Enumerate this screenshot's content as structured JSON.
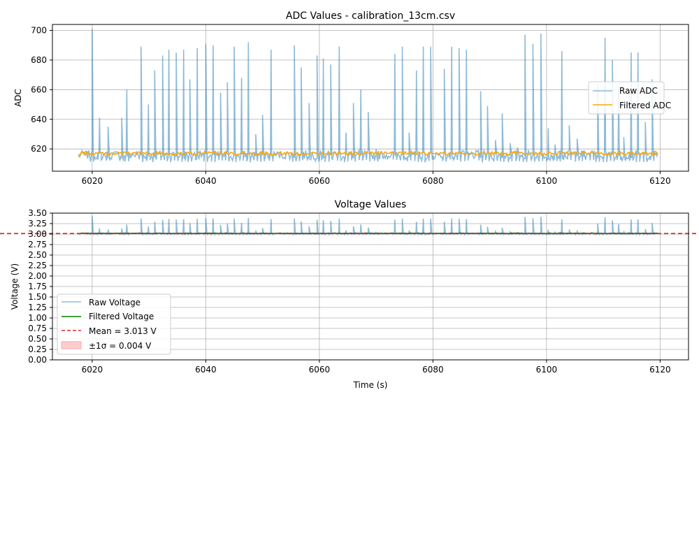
{
  "chart_data": [
    {
      "type": "line",
      "title": "ADC Values - calibration_13cm.csv",
      "xlabel": "",
      "ylabel": "ADC",
      "xlim": [
        6013,
        6125
      ],
      "ylim": [
        605,
        704
      ],
      "xticks": [
        6020,
        6040,
        6060,
        6080,
        6100,
        6120
      ],
      "yticks": [
        620,
        640,
        660,
        680,
        700
      ],
      "grid": true,
      "legend_position": "center-right",
      "series": [
        {
          "name": "Raw ADC",
          "color": "#1f77b4",
          "opacity": 0.5,
          "baseline": 616,
          "x_start": 6017.6,
          "x_end": 6119.6,
          "spikes": [
            [
              6020.0,
              701
            ],
            [
              6021.3,
              641
            ],
            [
              6022.8,
              635
            ],
            [
              6025.2,
              641
            ],
            [
              6026.1,
              660
            ],
            [
              6028.6,
              689
            ],
            [
              6029.9,
              650
            ],
            [
              6031.0,
              673
            ],
            [
              6032.4,
              683
            ],
            [
              6033.5,
              687
            ],
            [
              6034.8,
              685
            ],
            [
              6036.1,
              687
            ],
            [
              6037.2,
              667
            ],
            [
              6038.5,
              688
            ],
            [
              6040.0,
              691
            ],
            [
              6041.3,
              690
            ],
            [
              6042.6,
              658
            ],
            [
              6043.8,
              665
            ],
            [
              6045.0,
              689
            ],
            [
              6046.3,
              668
            ],
            [
              6047.5,
              692
            ],
            [
              6048.8,
              630
            ],
            [
              6050.0,
              643
            ],
            [
              6051.5,
              687
            ],
            [
              6055.6,
              690
            ],
            [
              6056.8,
              675
            ],
            [
              6058.2,
              651
            ],
            [
              6059.6,
              683
            ],
            [
              6060.7,
              681
            ],
            [
              6062.0,
              677
            ],
            [
              6063.5,
              689
            ],
            [
              6064.7,
              631
            ],
            [
              6066.0,
              651
            ],
            [
              6067.3,
              660
            ],
            [
              6068.6,
              645
            ],
            [
              6070.0,
              620
            ],
            [
              6073.3,
              684
            ],
            [
              6074.6,
              689
            ],
            [
              6075.8,
              631
            ],
            [
              6077.1,
              673
            ],
            [
              6078.3,
              689
            ],
            [
              6079.6,
              689
            ],
            [
              6082.0,
              674
            ],
            [
              6083.3,
              689
            ],
            [
              6084.6,
              688
            ],
            [
              6085.9,
              687
            ],
            [
              6088.4,
              659
            ],
            [
              6089.6,
              649
            ],
            [
              6091.0,
              626
            ],
            [
              6092.2,
              644
            ],
            [
              6093.6,
              624
            ],
            [
              6094.9,
              621
            ],
            [
              6096.2,
              697
            ],
            [
              6097.6,
              691
            ],
            [
              6099.0,
              698
            ],
            [
              6100.3,
              634
            ],
            [
              6101.5,
              623
            ],
            [
              6102.7,
              686
            ],
            [
              6104.0,
              636
            ],
            [
              6105.4,
              627
            ],
            [
              6106.6,
              619
            ],
            [
              6108.0,
              619
            ],
            [
              6109.0,
              664
            ],
            [
              6110.3,
              695
            ],
            [
              6111.6,
              680
            ],
            [
              6112.7,
              662
            ],
            [
              6113.6,
              628
            ],
            [
              6114.9,
              685
            ],
            [
              6116.1,
              685
            ],
            [
              6117.4,
              638
            ],
            [
              6118.6,
              667
            ]
          ]
        },
        {
          "name": "Filtered ADC",
          "color": "#ffa500",
          "opacity": 1,
          "baseline": 617,
          "x_start": 6017.6,
          "x_end": 6119.6
        }
      ]
    },
    {
      "type": "line",
      "title": "Voltage Values",
      "xlabel": "Time (s)",
      "ylabel": "Voltage (V)",
      "xlim": [
        6013,
        6125
      ],
      "ylim": [
        0,
        3.5
      ],
      "xticks": [
        6020,
        6040,
        6060,
        6080,
        6100,
        6120
      ],
      "yticks": [
        0.0,
        0.25,
        0.5,
        0.75,
        1.0,
        1.25,
        1.5,
        1.75,
        2.0,
        2.25,
        2.5,
        2.75,
        3.0,
        3.25,
        3.5
      ],
      "grid": true,
      "legend_position": "lower-left",
      "mean": 3.013,
      "sigma": 0.004,
      "series": [
        {
          "name": "Raw Voltage",
          "color": "#1f77b4",
          "opacity": 0.5
        },
        {
          "name": "Filtered Voltage",
          "color": "#008000",
          "opacity": 1
        },
        {
          "name": "Mean = 3.013 V",
          "color": "#d62728",
          "style": "dashed"
        },
        {
          "name": "±1σ = 0.004 V",
          "color": "#ffcccc",
          "style": "band"
        }
      ]
    }
  ]
}
